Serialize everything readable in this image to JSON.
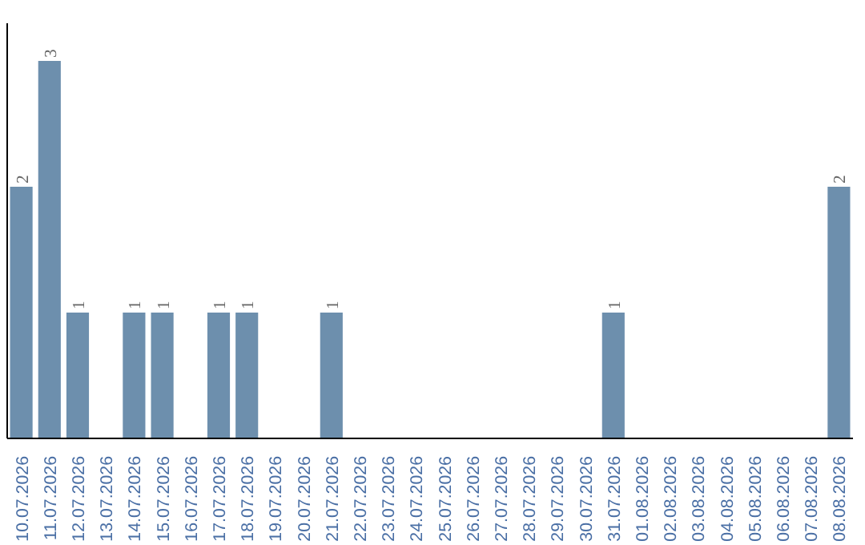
{
  "chart_data": {
    "type": "bar",
    "categories": [
      "10.07.2026",
      "11.07.2026",
      "12.07.2026",
      "13.07.2026",
      "14.07.2026",
      "15.07.2026",
      "16.07.2026",
      "17.07.2026",
      "18.07.2026",
      "19.07.2026",
      "20.07.2026",
      "21.07.2026",
      "22.07.2026",
      "23.07.2026",
      "24.07.2026",
      "25.07.2026",
      "26.07.2026",
      "27.07.2026",
      "28.07.2026",
      "29.07.2026",
      "30.07.2026",
      "31.07.2026",
      "01.08.2026",
      "02.08.2026",
      "03.08.2026",
      "04.08.2026",
      "05.08.2026",
      "06.08.2026",
      "07.08.2026",
      "08.08.2026"
    ],
    "values": [
      2,
      3,
      1,
      0,
      1,
      1,
      0,
      1,
      1,
      0,
      0,
      1,
      0,
      0,
      0,
      0,
      0,
      0,
      0,
      0,
      0,
      1,
      0,
      0,
      0,
      0,
      0,
      0,
      0,
      2
    ],
    "value_labels": [
      "2",
      "3",
      "1",
      null,
      "1",
      "1",
      null,
      "1",
      "1",
      null,
      null,
      "1",
      null,
      null,
      null,
      null,
      null,
      null,
      null,
      null,
      null,
      "1",
      null,
      null,
      null,
      null,
      null,
      null,
      null,
      "2"
    ],
    "color": "#6d8fad",
    "ylim": [
      0,
      3.3
    ],
    "tick_labels": "x",
    "grid": false
  }
}
